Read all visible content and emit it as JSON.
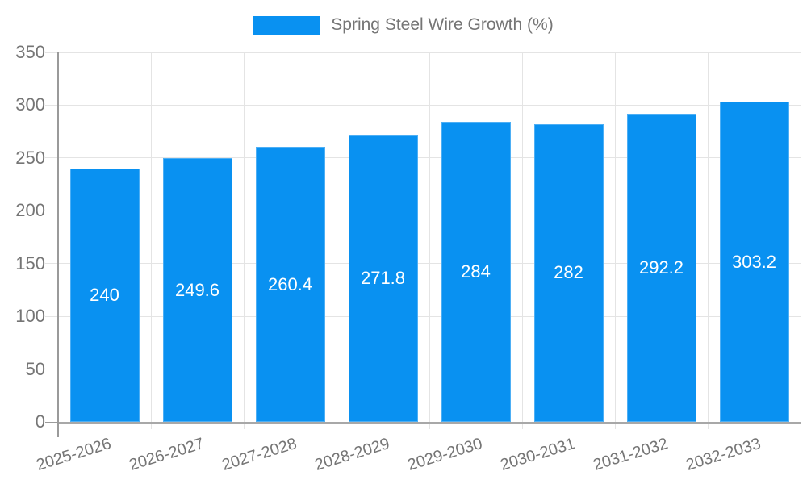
{
  "chart_data": {
    "type": "bar",
    "title": "",
    "legend": {
      "label": "Spring Steel Wire Growth (%)",
      "position": "top"
    },
    "categories": [
      "2025-2026",
      "2026-2027",
      "2027-2028",
      "2028-2029",
      "2029-2030",
      "2030-2031",
      "2031-2032",
      "2032-2033"
    ],
    "series": [
      {
        "name": "Spring Steel Wire Growth (%)",
        "values": [
          240,
          249.6,
          260.4,
          271.8,
          284,
          282,
          292.2,
          303.2
        ],
        "color": "#0991F1"
      }
    ],
    "value_labels": [
      "240",
      "249.6",
      "260.4",
      "271.8",
      "284",
      "282",
      "292.2",
      "303.2"
    ],
    "xlabel": "",
    "ylabel": "",
    "y_axis": {
      "min": 0,
      "max": 350,
      "tick_step": 50,
      "ticks": [
        0,
        50,
        100,
        150,
        200,
        250,
        300,
        350
      ]
    },
    "grid": true,
    "colors": {
      "bar": "#0991F1",
      "value_label_text": "#FFFFFF",
      "axis_text": "#757575",
      "gridline": "#E4E4E4",
      "axis_line": "#9A9A9A",
      "background": "#FFFFFF"
    }
  }
}
